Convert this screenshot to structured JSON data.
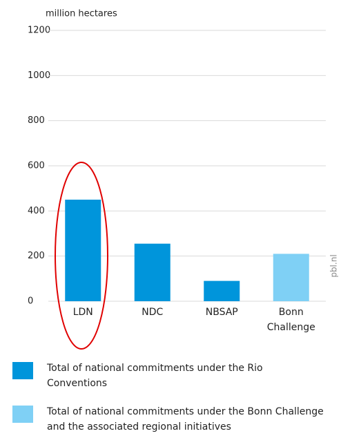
{
  "chart_data": {
    "type": "bar",
    "y_label": "million hectares",
    "categories": [
      "LDN",
      "NDC",
      "NBSAP",
      "Bonn Challenge"
    ],
    "values": [
      450,
      255,
      90,
      210
    ],
    "colors": [
      "#0095db",
      "#0095db",
      "#0095db",
      "#7fd0f5"
    ],
    "ylim": [
      0,
      1200
    ],
    "yticks": [
      0,
      200,
      400,
      600,
      800,
      1000,
      1200
    ],
    "grid": true,
    "source": "pbl.nl",
    "legend": [
      {
        "name": "Total of national commitments under the Rio Conventions",
        "color": "#0095db"
      },
      {
        "name": "Total of national commitments under the Bonn Challenge and the associated regional initiatives",
        "color": "#7fd0f5"
      }
    ]
  }
}
